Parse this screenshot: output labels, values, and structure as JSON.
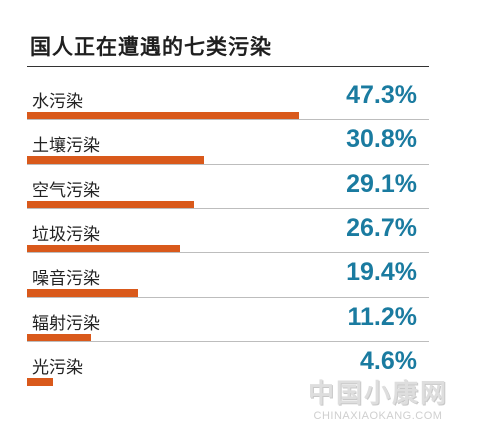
{
  "chart_data": {
    "type": "bar",
    "title": "国人正在遭遇的七类污染",
    "categories": [
      "水污染",
      "土壤污染",
      "空气污染",
      "垃圾污染",
      "噪音污染",
      "辐射污染",
      "光污染"
    ],
    "values": [
      47.3,
      30.8,
      29.1,
      26.7,
      19.4,
      11.2,
      4.6
    ],
    "value_labels": [
      "47.3%",
      "30.8%",
      "29.1%",
      "26.7%",
      "19.4%",
      "11.2%",
      "4.6%"
    ],
    "unit": "%",
    "xlim": [
      0,
      70
    ],
    "bar_color": "#d9591b",
    "value_color": "#1a7ba0"
  },
  "watermark": {
    "cn": "中国小康网",
    "en": "CHINAXIAOKANG.COM"
  }
}
